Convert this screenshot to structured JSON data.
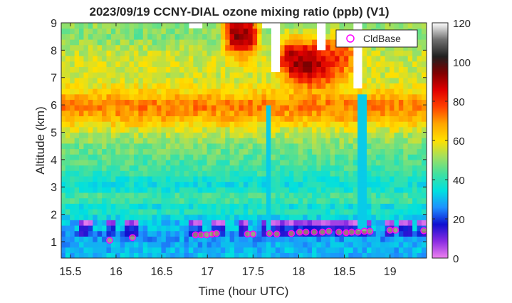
{
  "chart_data": {
    "type": "heatmap",
    "title": "2023/09/19 CCNY-DIAL ozone mixing ratio (ppb) (V1)",
    "xlabel": "Time (hour UTC)",
    "ylabel": "Altitude (km)",
    "xlim": [
      15.4,
      19.4
    ],
    "ylim": [
      0.4,
      9.0
    ],
    "xticks": [
      15.5,
      16,
      16.5,
      17,
      17.5,
      18,
      18.5,
      19
    ],
    "xtick_labels": [
      "15.5",
      "16",
      "16.5",
      "17",
      "17.5",
      "18",
      "18.5",
      "19"
    ],
    "yticks": [
      1,
      2,
      3,
      4,
      5,
      6,
      7,
      8,
      9
    ],
    "ytick_labels": [
      "1",
      "2",
      "3",
      "4",
      "5",
      "6",
      "7",
      "8",
      "9"
    ],
    "colorbar": {
      "limits": [
        0,
        120
      ],
      "ticks": [
        0,
        20,
        40,
        60,
        80,
        100,
        120
      ],
      "tick_labels": [
        "0",
        "20",
        "40",
        "60",
        "80",
        "100",
        "120"
      ],
      "colors": [
        "#ee82ee",
        "#8a2be2",
        "#1010d0",
        "#1e90ff",
        "#00e0e0",
        "#40e0a0",
        "#a0e060",
        "#ffe000",
        "#ffa500",
        "#ff4000",
        "#e00000",
        "#800000",
        "#202020",
        "#707070",
        "#ffffff"
      ]
    },
    "legend": {
      "entries": [
        "CldBase"
      ],
      "location": "top-right",
      "marker": "circle",
      "marker_color": "#ff00ff"
    },
    "time_bins_hours": [
      15.42,
      15.47,
      15.52,
      15.57,
      15.62,
      15.67,
      15.72,
      15.77,
      15.82,
      15.87,
      15.92,
      15.97,
      16.02,
      16.07,
      16.12,
      16.17,
      16.22,
      16.27,
      16.32,
      16.37,
      16.42,
      16.47,
      16.52,
      16.57,
      16.62,
      16.67,
      16.72,
      16.77,
      16.82,
      16.87,
      16.92,
      16.97,
      17.02,
      17.07,
      17.12,
      17.17,
      17.22,
      17.27,
      17.32,
      17.37,
      17.42,
      17.47,
      17.52,
      17.57,
      17.62,
      17.67,
      17.72,
      17.77,
      17.82,
      17.87,
      17.92,
      17.97,
      18.02,
      18.07,
      18.12,
      18.17,
      18.22,
      18.27,
      18.32,
      18.37,
      18.42,
      18.47,
      18.52,
      18.57,
      18.62,
      18.67,
      18.72,
      18.77,
      18.82,
      18.87,
      18.92,
      18.97,
      19.02,
      19.07,
      19.12,
      19.17,
      19.22,
      19.27,
      19.32,
      19.37
    ],
    "altitude_profile_km": [
      0.6,
      1.0,
      1.3,
      1.6,
      1.8,
      2.0,
      2.3,
      2.6,
      2.8,
      3.0,
      3.3,
      3.6,
      4.0,
      4.5,
      5.0,
      5.5,
      5.8,
      6.0,
      6.3,
      6.6,
      7.0,
      7.5,
      8.0,
      8.5,
      9.0
    ],
    "ozone_ppb_mean_profile": [
      30,
      28,
      26,
      32,
      28,
      40,
      36,
      44,
      40,
      35,
      38,
      42,
      44,
      48,
      54,
      66,
      70,
      73,
      66,
      60,
      55,
      56,
      54,
      48,
      50
    ],
    "ozone_ppb_upper_layer_events": {
      "times_hours": [
        17.3,
        17.45,
        17.9,
        18.0,
        18.1,
        18.2,
        18.3,
        18.4,
        18.5
      ],
      "peak_ppb": [
        95,
        92,
        88,
        90,
        92,
        90,
        85,
        80,
        75
      ],
      "peak_altitude_km": [
        8.6,
        8.6,
        7.7,
        7.6,
        7.5,
        7.5,
        7.6,
        7.6,
        7.8
      ]
    },
    "data_gaps_above_km": [
      {
        "start_hours": 16.8,
        "end_hours": 16.95,
        "above_km": 8.85
      },
      {
        "start_hours": 17.6,
        "end_hours": 17.7,
        "above_km": 8.9
      },
      {
        "start_hours": 17.7,
        "end_hours": 17.8,
        "above_km": 7.3
      },
      {
        "start_hours": 18.22,
        "end_hours": 18.32,
        "above_km": 8.0
      },
      {
        "start_hours": 18.62,
        "end_hours": 18.7,
        "above_km": 6.7
      }
    ],
    "low_valleys": [
      {
        "start_hours": 17.66,
        "end_hours": 17.72,
        "top_km": 6.1
      },
      {
        "start_hours": 18.67,
        "end_hours": 18.74,
        "top_km": 6.4
      }
    ],
    "boundary_layer_top_times_hours": [
      15.67,
      15.95,
      16.17,
      16.87,
      17.12,
      17.4,
      17.68,
      17.77,
      17.92,
      18.04,
      18.15,
      18.27,
      18.42,
      18.52,
      18.62,
      18.72,
      19.0,
      19.17,
      19.37
    ],
    "cloud_base": {
      "name": "CldBase",
      "times_hours": [
        15.93,
        16.18,
        16.87,
        16.93,
        16.99,
        17.05,
        17.1,
        17.44,
        17.5,
        17.68,
        17.76,
        17.92,
        18.01,
        18.08,
        18.17,
        18.26,
        18.33,
        18.44,
        18.52,
        18.58,
        18.65,
        18.72,
        18.78,
        19.0,
        19.06,
        19.37
      ],
      "altitudes_km": [
        1.05,
        1.15,
        1.25,
        1.25,
        1.25,
        1.28,
        1.3,
        1.28,
        1.28,
        1.3,
        1.28,
        1.3,
        1.35,
        1.35,
        1.35,
        1.35,
        1.38,
        1.35,
        1.33,
        1.35,
        1.35,
        1.38,
        1.38,
        1.42,
        1.42,
        1.4
      ]
    }
  }
}
